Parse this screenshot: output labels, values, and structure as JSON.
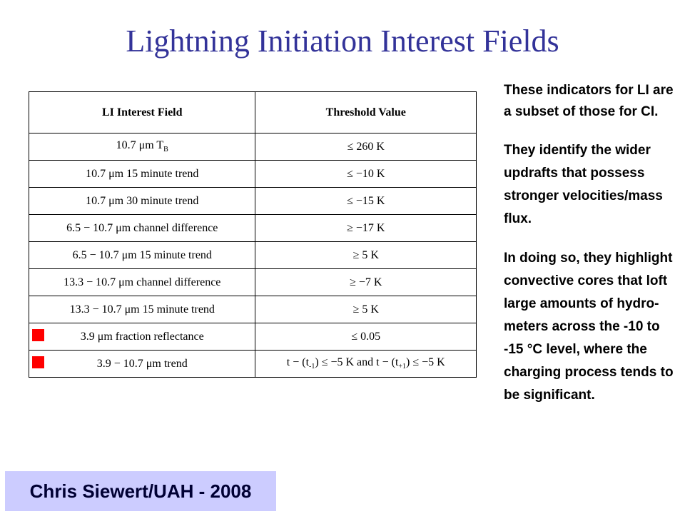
{
  "title": "Lightning Initiation Interest Fields",
  "table": {
    "headers": [
      "LI Interest Field",
      "Threshold Value"
    ],
    "rows": [
      {
        "field": "10.7 μm T",
        "field_sub": "B",
        "threshold": "≤ 260 K",
        "flagged": false
      },
      {
        "field": "10.7 μm 15 minute trend",
        "threshold": "≤ −10 K",
        "flagged": false
      },
      {
        "field": "10.7 μm 30 minute trend",
        "threshold": "≤ −15 K",
        "flagged": false
      },
      {
        "field": "6.5 − 10.7 μm channel difference",
        "threshold": "≥ −17 K",
        "flagged": false
      },
      {
        "field": "6.5 − 10.7 μm 15 minute trend",
        "threshold": "≥ 5 K",
        "flagged": false
      },
      {
        "field": "13.3 − 10.7 μm channel difference",
        "threshold": "≥ −7 K",
        "flagged": false
      },
      {
        "field": "13.3 − 10.7 μm 15 minute trend",
        "threshold": "≥ 5 K",
        "flagged": false
      },
      {
        "field": "3.9 μm fraction reflectance",
        "threshold": "≤ 0.05",
        "flagged": true
      },
      {
        "field": "3.9 − 10.7 μm trend",
        "threshold_parts": [
          "t − (t",
          "-1",
          ") ≤ −5 K and t − (t",
          "+1",
          ") ≤ −5 K"
        ],
        "flagged": true
      }
    ],
    "marker_color": "#ff0000"
  },
  "sidebar": {
    "paragraphs": [
      "These indicators for LI are a subset of those for CI.",
      "They identify the wider updrafts that possess stronger velocities/mass flux.",
      "In doing so, they highlight convective cores that loft large amounts of hydro-meters across the -10 to -15 °C level, where the charging process tends to be significant."
    ]
  },
  "credit": "Chris Siewert/UAH - 2008",
  "colors": {
    "title": "#333399",
    "credit_bg": "#ccccff"
  }
}
